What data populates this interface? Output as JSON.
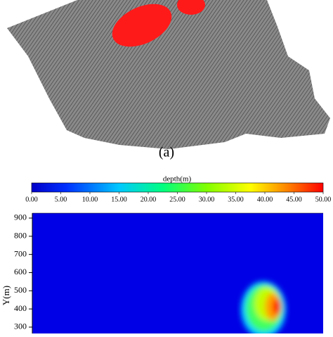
{
  "chart_data": {
    "type": "heatmap",
    "panel_label": "(a)",
    "colorbar_title": "depth(m)",
    "colorbar_lim": [
      0,
      50
    ],
    "colorbar_ticks": [
      {
        "value": 0,
        "label": "0.00"
      },
      {
        "value": 5,
        "label": "5.00"
      },
      {
        "value": 10,
        "label": "10.00"
      },
      {
        "value": 15,
        "label": "15.00"
      },
      {
        "value": 20,
        "label": "20.00"
      },
      {
        "value": 25,
        "label": "25.00"
      },
      {
        "value": 30,
        "label": "30.00"
      },
      {
        "value": 35,
        "label": "35.00"
      },
      {
        "value": 40,
        "label": "40.00"
      },
      {
        "value": 45,
        "label": "45.00"
      },
      {
        "value": 50,
        "label": "50.00"
      }
    ],
    "ylabel": "Y(m)",
    "ylim": [
      265,
      927
    ],
    "yticks": [
      300,
      400,
      500,
      600,
      700,
      800,
      900
    ]
  }
}
